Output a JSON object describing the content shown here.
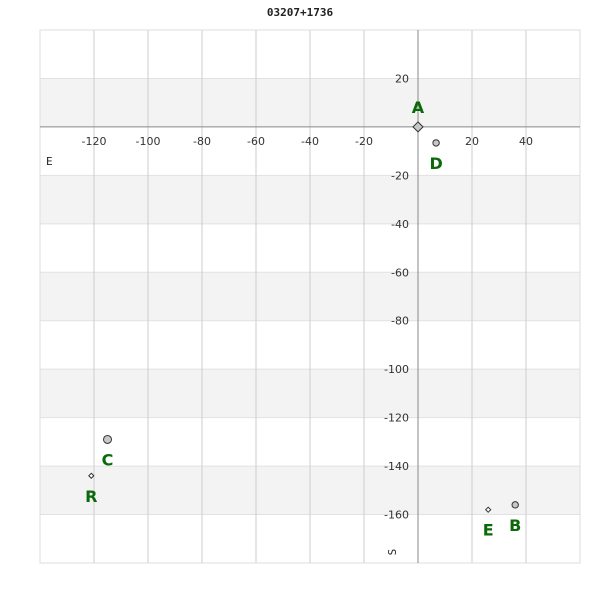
{
  "chart_data": {
    "type": "scatter",
    "title": "03207+1736",
    "xlim": [
      -140,
      60
    ],
    "ylim": [
      -180,
      40
    ],
    "xticks": [
      -120,
      -100,
      -80,
      -60,
      -40,
      -20,
      20,
      40
    ],
    "yticks": [
      20,
      -20,
      -40,
      -60,
      -80,
      -100,
      -120,
      -140,
      -160
    ],
    "grid": true,
    "direction_labels": {
      "east": "E",
      "south": "S"
    },
    "points": [
      {
        "label": "A",
        "x": 0,
        "y": 0,
        "marker": "diamond"
      },
      {
        "label": "D",
        "x": 6.7,
        "y": -6.6,
        "marker": "circle"
      },
      {
        "label": "C",
        "x": -115,
        "y": -129,
        "marker": "circle"
      },
      {
        "label": "R",
        "x": -121,
        "y": -144,
        "marker": "small-diamond"
      },
      {
        "label": "E",
        "x": 26,
        "y": -158,
        "marker": "small-diamond"
      },
      {
        "label": "B",
        "x": 36,
        "y": -156,
        "marker": "circle"
      }
    ],
    "colors": {
      "label": "#0a6a0a",
      "marker_fill": "#c8c8c8",
      "band": "#f3f3f3",
      "grid": "#cccccc"
    }
  }
}
